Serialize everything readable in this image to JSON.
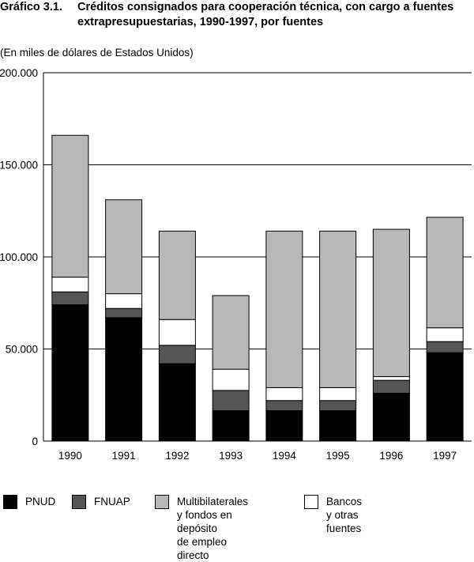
{
  "title": {
    "number": "Gráfico 3.1.",
    "text": "Créditos consignados para cooperación técnica, con cargo a fuentes extrapresupuestarias, 1990-1997, por fuentes"
  },
  "subtitle": "(En miles de dólares de Estados Unidos)",
  "colors": {
    "PNUD": "#000000",
    "FNUAP": "#555555",
    "Multibilaterales": "#b8b8b8",
    "Bancos": "#ffffff"
  },
  "legend": [
    {
      "key": "PNUD",
      "label": "PNUD",
      "icon": "black-square"
    },
    {
      "key": "FNUAP",
      "label": "FNUAP",
      "icon": "dark-gray-square"
    },
    {
      "key": "Multibilaterales",
      "label": "Multibilaterales\ny fondos en depósito\nde empleo directo",
      "icon": "light-gray-square"
    },
    {
      "key": "Bancos",
      "label": "Bancos y otras fuentes",
      "icon": "white-square"
    }
  ],
  "chart_data": {
    "type": "bar",
    "stacked": true,
    "categories": [
      "1990",
      "1991",
      "1992",
      "1993",
      "1994",
      "1995",
      "1996",
      "1997"
    ],
    "series": [
      {
        "name": "PNUD",
        "values": [
          74000,
          67000,
          42000,
          16500,
          16500,
          16500,
          26000,
          48000
        ]
      },
      {
        "name": "FNUAP",
        "values": [
          7000,
          5000,
          10000,
          11000,
          5500,
          5500,
          7000,
          6000
        ]
      },
      {
        "name": "Bancos y otras fuentes",
        "values": [
          8000,
          8000,
          14000,
          11500,
          7000,
          7000,
          2000,
          7500
        ]
      },
      {
        "name": "Multibilaterales y fondos en depósito de empleo directo",
        "values": [
          77000,
          51000,
          48000,
          40000,
          85000,
          85000,
          80000,
          60000
        ]
      }
    ],
    "ylim": [
      0,
      200000
    ],
    "yticks": [
      0,
      50000,
      100000,
      150000,
      200000
    ],
    "ytick_labels": [
      "0",
      "50.000",
      "100.000",
      "150.000",
      "200.000"
    ],
    "grid": "horizontal",
    "legend_position": "bottom"
  }
}
